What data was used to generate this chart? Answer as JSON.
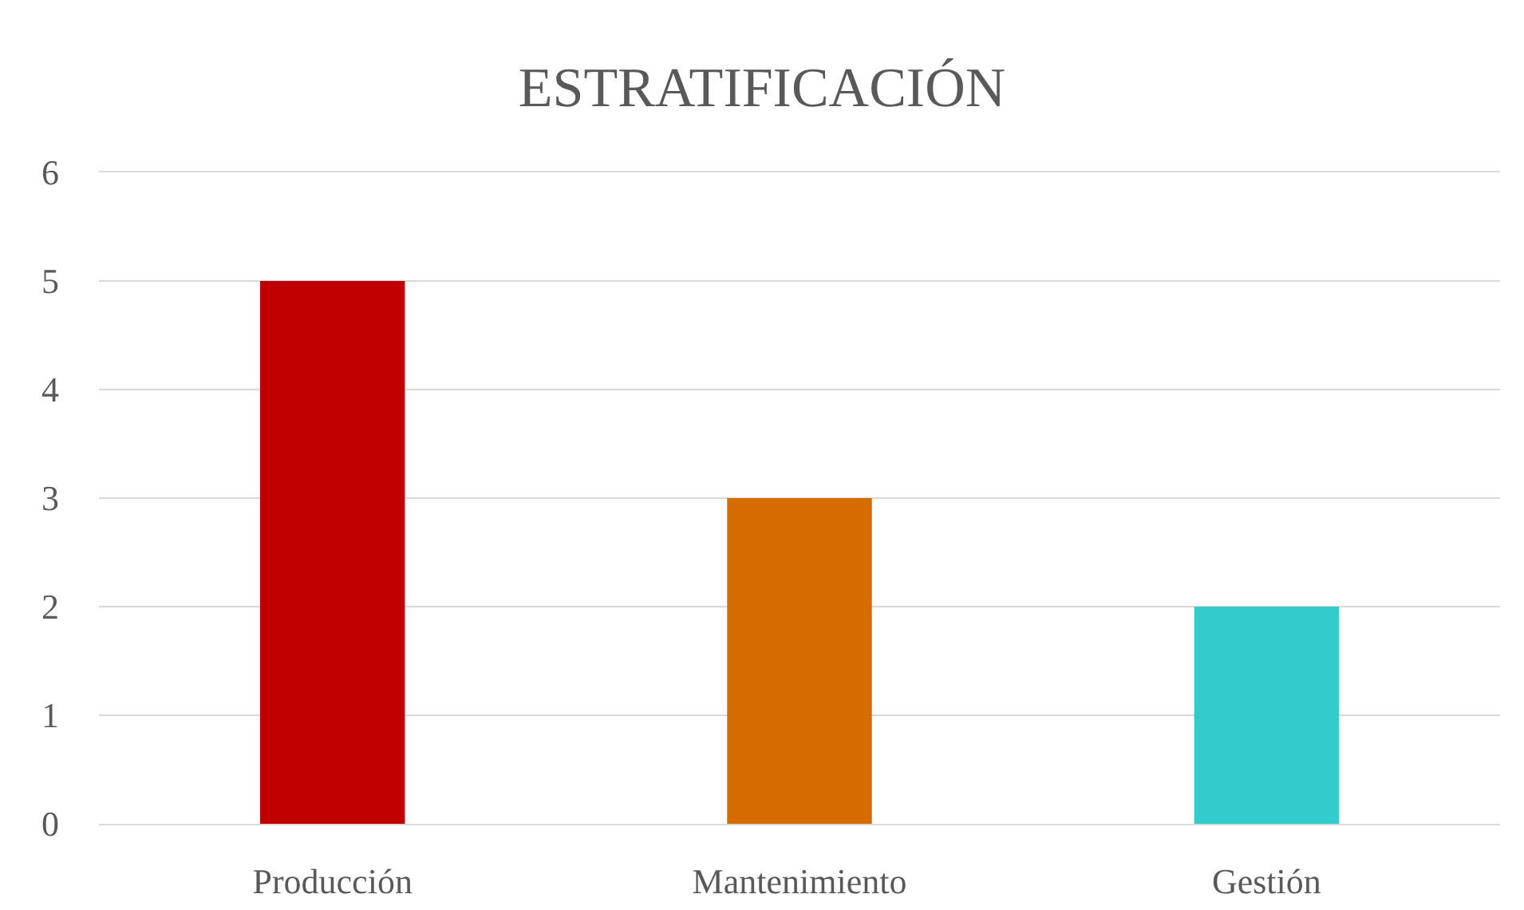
{
  "chart_data": {
    "type": "bar",
    "title": "ESTRATIFICACIÓN",
    "categories": [
      "Producción",
      "Mantenimiento",
      "Gestión"
    ],
    "values": [
      5,
      3,
      2
    ],
    "colors": [
      "#c00000",
      "#d66b00",
      "#33cccc"
    ],
    "ylim": [
      0,
      6
    ],
    "yticks": [
      0,
      1,
      2,
      3,
      4,
      5,
      6
    ],
    "grid": "y"
  }
}
